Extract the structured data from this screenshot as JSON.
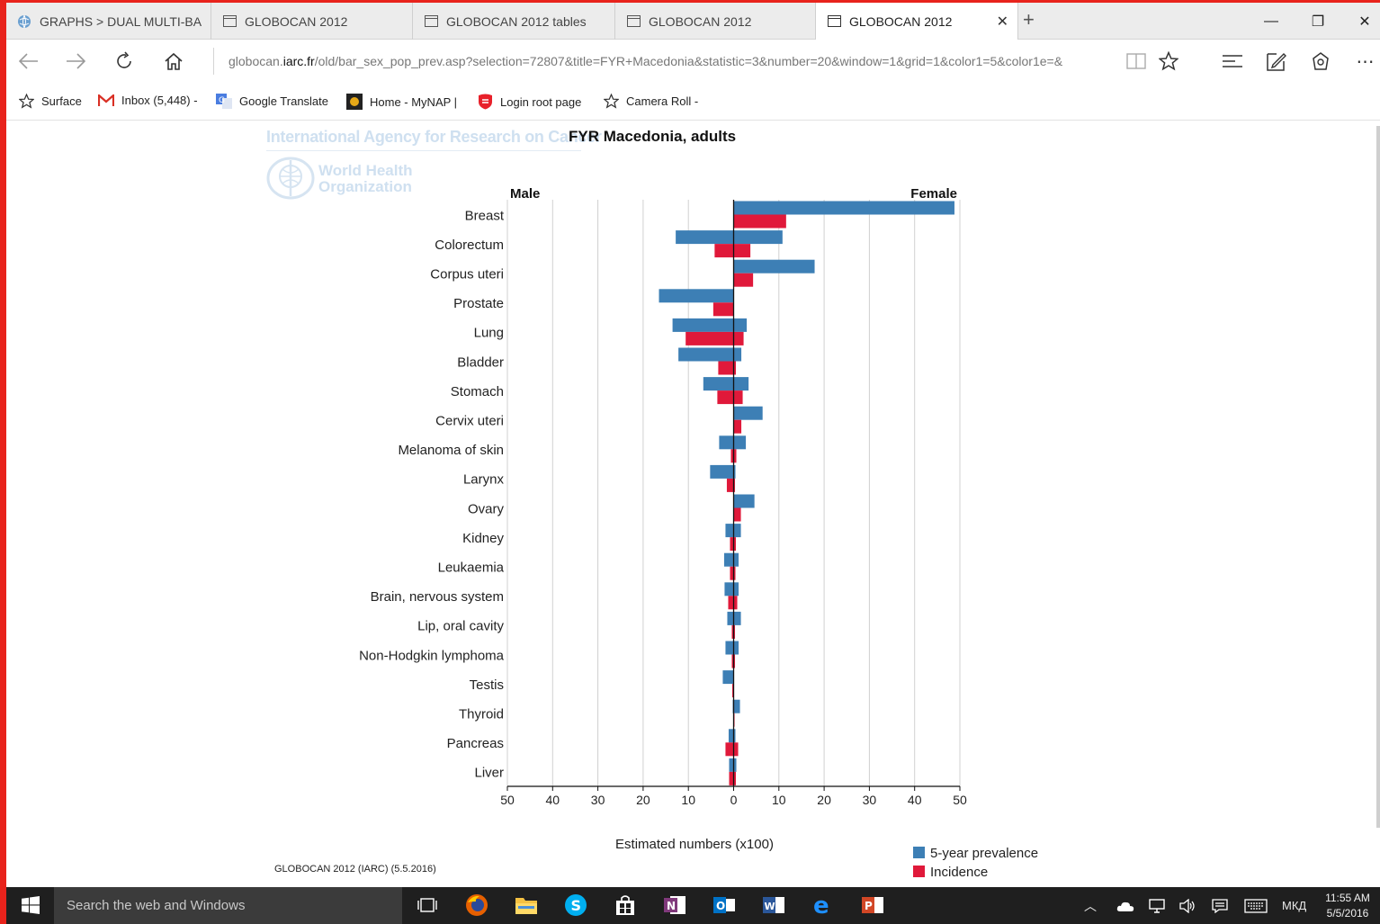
{
  "browser": {
    "tabs": [
      {
        "label": "GRAPHS > DUAL MULTI-BA",
        "active": false
      },
      {
        "label": "GLOBOCAN 2012",
        "active": false
      },
      {
        "label": "GLOBOCAN 2012 tables",
        "active": false
      },
      {
        "label": "GLOBOCAN 2012",
        "active": false
      },
      {
        "label": "GLOBOCAN 2012",
        "active": true
      }
    ],
    "address_host_prefix": "globocan.",
    "address_host_bold": "iarc.fr",
    "address_rest": "/old/bar_sex_pop_prev.asp?selection=72807&title=FYR+Macedonia&statistic=3&number=20&window=1&grid=1&color1=5&color1e=&",
    "favorites": [
      "Surface",
      "Inbox (5,448) -",
      "Google Translate",
      "Home - MyNAP |",
      "Login root page",
      "Camera Roll -"
    ]
  },
  "page": {
    "iarc_header": "International Agency for Research on Cancer",
    "who_line1": "World Health",
    "who_line2": "Organization",
    "footnote": "GLOBOCAN 2012 (IARC) (5.5.2016)"
  },
  "chart_data": {
    "type": "bar",
    "orientation": "horizontal",
    "title": "FYR Macedonia, adults",
    "left_label": "Male",
    "right_label": "Female",
    "xlabel": "Estimated numbers (x100)",
    "xlim": [
      -50,
      50
    ],
    "x_ticks": [
      -50,
      -40,
      -30,
      -20,
      -10,
      0,
      10,
      20,
      30,
      40,
      50
    ],
    "x_tick_labels": [
      "50",
      "40",
      "30",
      "20",
      "10",
      "0",
      "10",
      "20",
      "30",
      "40",
      "50"
    ],
    "grid": true,
    "legend_position": "bottom-right",
    "categories": [
      "Breast",
      "Colorectum",
      "Corpus uteri",
      "Prostate",
      "Lung",
      "Bladder",
      "Stomach",
      "Cervix uteri",
      "Melanoma of skin",
      "Larynx",
      "Ovary",
      "Kidney",
      "Leukaemia",
      "Brain, nervous system",
      "Lip, oral cavity",
      "Non-Hodgkin lymphoma",
      "Testis",
      "Thyroid",
      "Pancreas",
      "Liver"
    ],
    "series": [
      {
        "name": "5-year prevalence",
        "color": "#3d7fb5",
        "male": [
          0,
          12.8,
          0,
          16.5,
          13.5,
          12.2,
          6.7,
          0,
          3.2,
          5.2,
          0,
          1.8,
          2.1,
          2.0,
          1.4,
          1.8,
          2.4,
          0.2,
          1.1,
          1.0
        ],
        "female": [
          48.8,
          10.8,
          17.9,
          0,
          2.9,
          1.7,
          3.3,
          6.4,
          2.7,
          0.4,
          4.6,
          1.6,
          1.1,
          1.1,
          1.6,
          1.1,
          0,
          1.4,
          0.4,
          0.6
        ]
      },
      {
        "name": "Incidence",
        "color": "#e0193a",
        "male": [
          0,
          4.2,
          0,
          4.5,
          10.6,
          3.4,
          3.6,
          0,
          0.6,
          1.5,
          0,
          0.8,
          0.8,
          1.2,
          0.4,
          0.4,
          0.3,
          0.1,
          1.8,
          1.0
        ],
        "female": [
          11.6,
          3.7,
          4.3,
          0,
          2.2,
          0.5,
          2.0,
          1.7,
          0.6,
          0.3,
          1.6,
          0.5,
          0.4,
          0.8,
          0.3,
          0.3,
          0,
          0.2,
          1.0,
          0.5
        ]
      }
    ]
  },
  "taskbar": {
    "search_placeholder": "Search the web and Windows",
    "language": "МКД",
    "time": "11:55 AM",
    "date": "5/5/2016"
  },
  "icons": [
    "back-icon",
    "forward-icon",
    "refresh-icon",
    "home-icon",
    "reading-view-icon",
    "favorite-star-icon",
    "hub-icon",
    "web-note-icon",
    "share-icon",
    "more-icon"
  ]
}
